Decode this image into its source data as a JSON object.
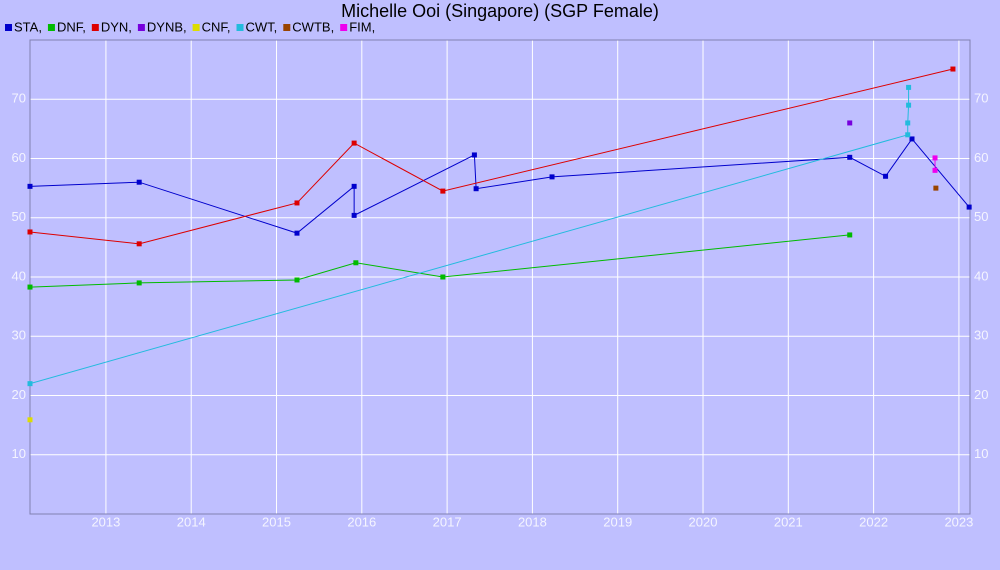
{
  "chart_data": {
    "type": "line",
    "title": "Michelle Ooi (Singapore) (SGP Female)",
    "xlim": [
      2012.11,
      2023.13
    ],
    "xticks": [
      2013,
      2014,
      2015,
      2016,
      2017,
      2018,
      2019,
      2020,
      2021,
      2022,
      2023
    ],
    "ylim": [
      0,
      80
    ],
    "yticks": [
      10,
      20,
      30,
      40,
      50,
      60,
      70
    ],
    "grid": true,
    "legend": "top-left",
    "series": [
      {
        "name": "STA,",
        "color": "#0000cc",
        "x": [
          2012.11,
          2013.39,
          2015.24,
          2015.91,
          2015.91,
          2017.32,
          2017.34,
          2018.23,
          2021.72,
          2022.14,
          2022.45,
          2023.12
        ],
        "values": [
          55.3,
          56.0,
          47.4,
          55.3,
          50.4,
          60.6,
          54.9,
          56.9,
          60.2,
          57.0,
          63.3,
          51.8
        ]
      },
      {
        "name": "DNF,",
        "color": "#00bb00",
        "x": [
          2012.11,
          2013.39,
          2015.24,
          2015.93,
          2016.95,
          2021.72
        ],
        "values": [
          38.3,
          39.0,
          39.5,
          42.4,
          40.0,
          47.1
        ]
      },
      {
        "name": "DYN,",
        "color": "#dd0000",
        "x": [
          2012.11,
          2013.39,
          2015.24,
          2015.91,
          2016.95,
          2022.93
        ],
        "values": [
          47.6,
          45.6,
          52.5,
          62.6,
          54.5,
          75.1
        ]
      },
      {
        "name": "DYNB,",
        "color": "#7700dd",
        "x": [
          2021.72
        ],
        "values": [
          66.0
        ]
      },
      {
        "name": "CNF,",
        "color": "#dddd00",
        "x": [
          2012.11
        ],
        "values": [
          15.9
        ]
      },
      {
        "name": "CWT,",
        "color": "#22bbdd",
        "x": [
          2012.11,
          2022.4,
          2022.4,
          2022.41,
          2022.41
        ],
        "values": [
          22.0,
          64.0,
          66.0,
          69.0,
          72.0
        ]
      },
      {
        "name": "CWTB,",
        "color": "#994400",
        "x": [
          2022.73
        ],
        "values": [
          55.0
        ]
      },
      {
        "name": "FIM,",
        "color": "#ee00ee",
        "x": [
          2022.72,
          2022.72
        ],
        "values": [
          60.1,
          58.0
        ]
      }
    ]
  }
}
